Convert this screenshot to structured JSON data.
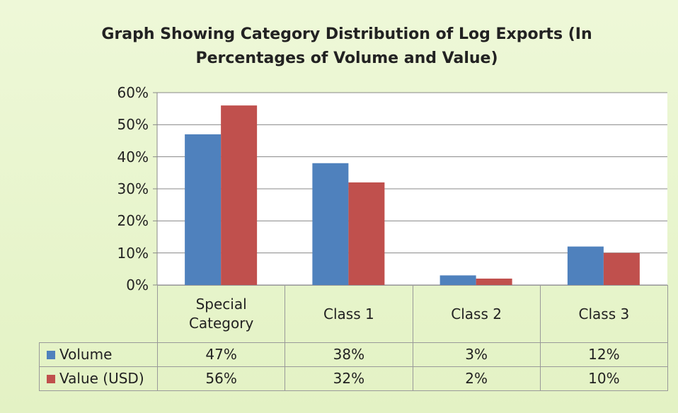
{
  "chart_data": {
    "type": "bar",
    "title": "Graph Showing Category Distribution of Log Exports (In Percentages of Volume and Value)",
    "categories": [
      "Special Category",
      "Class 1",
      "Class 2",
      "Class 3"
    ],
    "series": [
      {
        "name": "Volume",
        "color": "#4f81bd",
        "values": [
          47,
          38,
          3,
          12
        ],
        "value_labels": [
          "47%",
          "38%",
          "3%",
          "12%"
        ]
      },
      {
        "name": "Value (USD)",
        "color": "#c0504d",
        "values": [
          56,
          32,
          2,
          10
        ],
        "value_labels": [
          "56%",
          "32%",
          "2%",
          "10%"
        ]
      }
    ],
    "ylim": [
      0,
      60
    ],
    "yticks": [
      {
        "value": 0,
        "label": "0%"
      },
      {
        "value": 10,
        "label": "10%"
      },
      {
        "value": 20,
        "label": "20%"
      },
      {
        "value": 30,
        "label": "30%"
      },
      {
        "value": 40,
        "label": "40%"
      },
      {
        "value": 50,
        "label": "50%"
      },
      {
        "value": 60,
        "label": "60%"
      }
    ],
    "grid": true,
    "legend": "table"
  }
}
